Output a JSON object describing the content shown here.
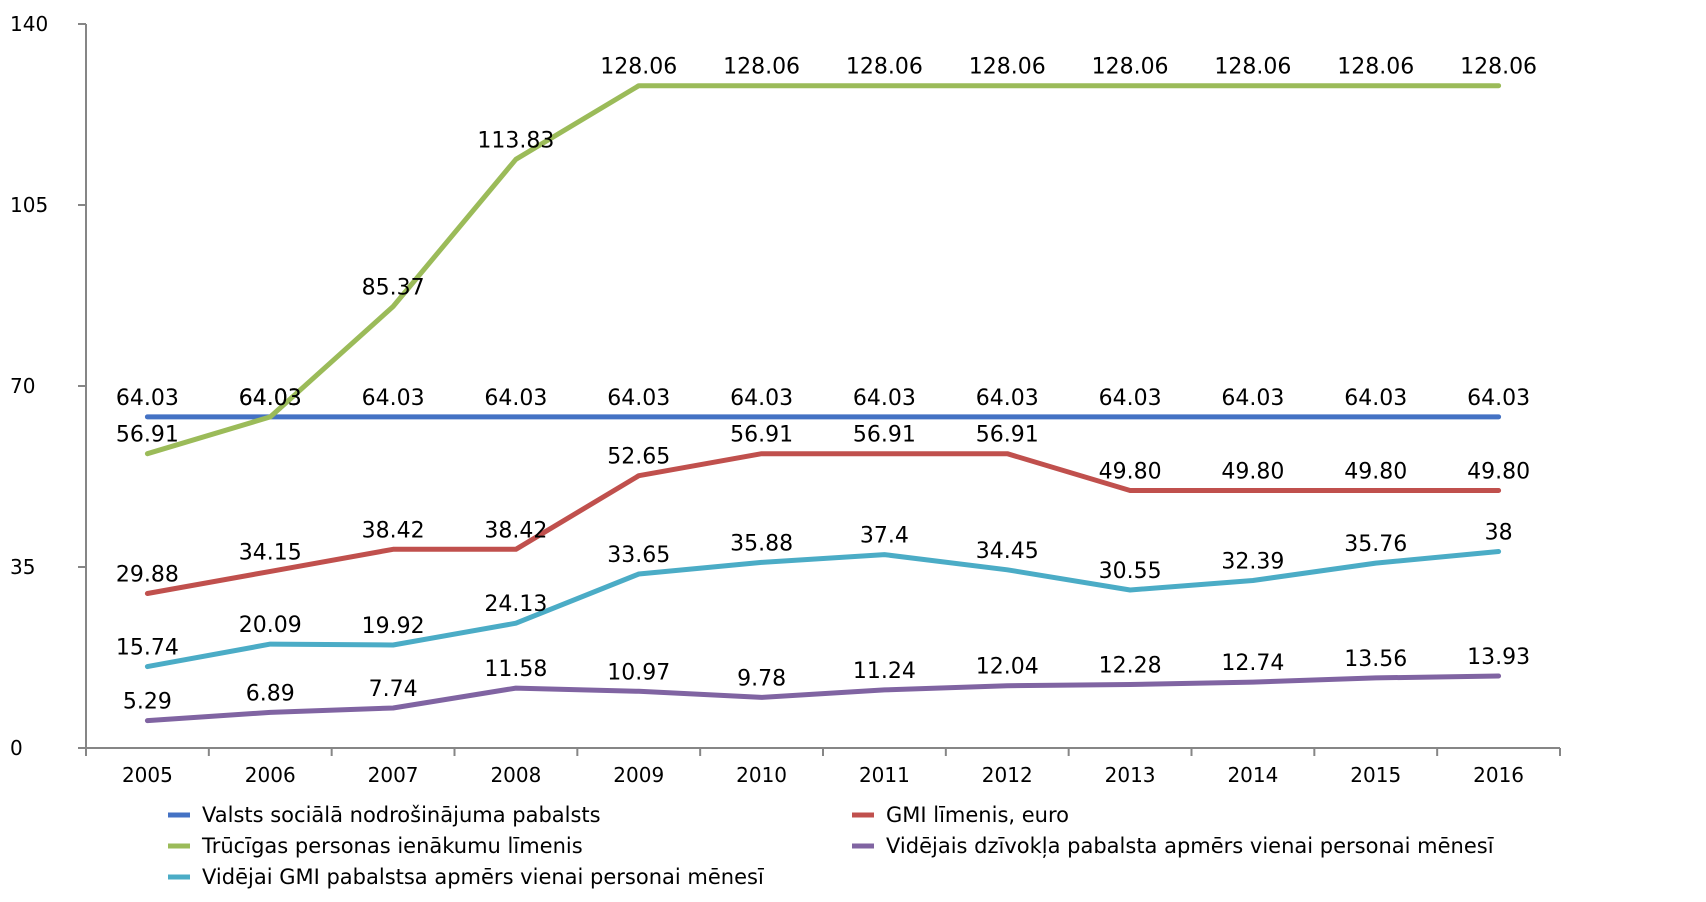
{
  "chart_data": {
    "type": "line",
    "title": "",
    "xlabel": "",
    "ylabel": "",
    "categories": [
      "2005",
      "2006",
      "2007",
      "2008",
      "2009",
      "2010",
      "2011",
      "2012",
      "2013",
      "2014",
      "2015",
      "2016"
    ],
    "ylim": [
      0,
      140
    ],
    "yticks": [
      "0",
      "35",
      "70",
      "105",
      "140"
    ],
    "grid": false,
    "legend_position": "bottom",
    "series": [
      {
        "name": "Valsts sociālā nodrošinājuma pabalsts",
        "color": "#4472C4",
        "values": [
          64.03,
          64.03,
          64.03,
          64.03,
          64.03,
          64.03,
          64.03,
          64.03,
          64.03,
          64.03,
          64.03,
          64.03
        ],
        "labels": [
          "64.03",
          "64.03",
          "64.03",
          "64.03",
          "64.03",
          "64.03",
          "64.03",
          "64.03",
          "64.03",
          "64.03",
          "64.03",
          "64.03"
        ]
      },
      {
        "name": "GMI līmenis, euro",
        "color": "#C0504D",
        "values": [
          29.88,
          34.15,
          38.42,
          38.42,
          52.65,
          56.91,
          56.91,
          56.91,
          49.8,
          49.8,
          49.8,
          49.8
        ],
        "labels": [
          "29.88",
          "34.15",
          "38.42",
          "38.42",
          "52.65",
          "56.91",
          "56.91",
          "56.91",
          "49.80",
          "49.80",
          "49.80",
          "49.80"
        ]
      },
      {
        "name": "Trūcīgas personas ienākumu līmenis",
        "color": "#9BBB59",
        "values": [
          56.91,
          64.03,
          85.37,
          113.83,
          128.06,
          128.06,
          128.06,
          128.06,
          128.06,
          128.06,
          128.06,
          128.06
        ],
        "labels": [
          "56.91",
          "64.03",
          "85.37",
          "113.83",
          "128.06",
          "128.06",
          "128.06",
          "128.06",
          "128.06",
          "128.06",
          "128.06",
          "128.06"
        ]
      },
      {
        "name": "Vidējais dzīvokļa pabalsta apmērs vienai personai mēnesī",
        "color": "#8064A2",
        "values": [
          5.29,
          6.89,
          7.74,
          11.58,
          10.97,
          9.78,
          11.24,
          12.04,
          12.28,
          12.74,
          13.56,
          13.93
        ],
        "labels": [
          "5.29",
          "6.89",
          "7.74",
          "11.58",
          "10.97",
          "9.78",
          "11.24",
          "12.04",
          "12.28",
          "12.74",
          "13.56",
          "13.93"
        ]
      },
      {
        "name": "Vidējai GMI pabalstsa apmērs vienai personai mēnesī",
        "color": "#4BACC6",
        "values": [
          15.74,
          20.09,
          19.92,
          24.13,
          33.65,
          35.88,
          37.4,
          34.45,
          30.55,
          32.39,
          35.76,
          38
        ],
        "labels": [
          "15.74",
          "20.09",
          "19.92",
          "24.13",
          "33.65",
          "35.88",
          "37.4",
          "34.45",
          "30.55",
          "32.39",
          "35.76",
          "38"
        ]
      }
    ]
  }
}
